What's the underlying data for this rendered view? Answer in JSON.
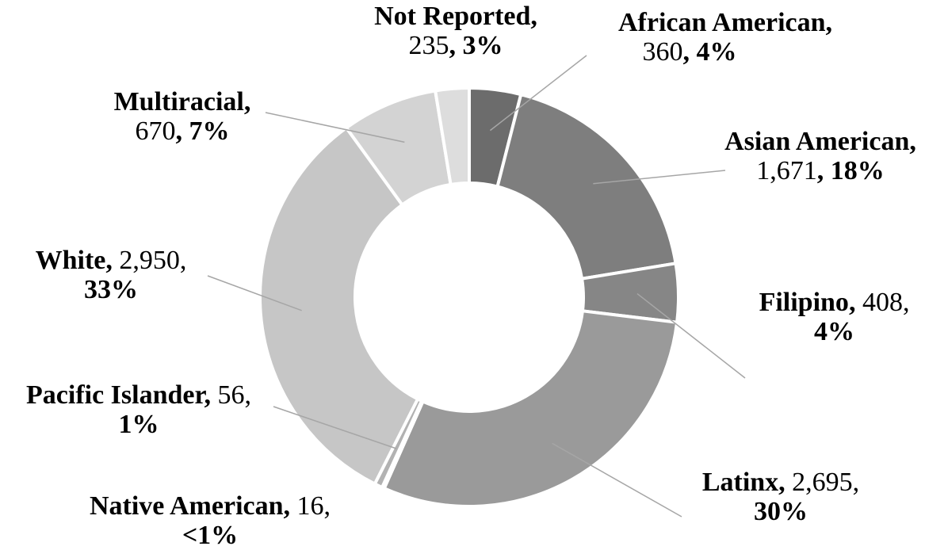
{
  "chart_data": {
    "type": "pie",
    "style": "donut",
    "legend": "none",
    "slices": [
      {
        "category": "African American",
        "count_text": "360",
        "percent_text": "4%",
        "value": 360,
        "color": "#6c6c6c"
      },
      {
        "category": "Asian American",
        "count_text": "1,671",
        "percent_text": "18%",
        "value": 1671,
        "color": "#7e7e7e"
      },
      {
        "category": "Filipino",
        "count_text": "408",
        "percent_text": "4%",
        "value": 408,
        "color": "#868686"
      },
      {
        "category": "Latinx",
        "count_text": "2,695",
        "percent_text": "30%",
        "value": 2695,
        "color": "#9a9a9a"
      },
      {
        "category": "Native American",
        "count_text": "16",
        "percent_text": "<1%",
        "value": 16,
        "color": "#a8a8a8"
      },
      {
        "category": "Pacific Islander",
        "count_text": "56",
        "percent_text": "1%",
        "value": 56,
        "color": "#b2b2b2"
      },
      {
        "category": "White",
        "count_text": "2,950",
        "percent_text": "33%",
        "value": 2950,
        "color": "#c6c6c6"
      },
      {
        "category": "Multiracial",
        "count_text": "670",
        "percent_text": "7%",
        "value": 670,
        "color": "#d3d3d3"
      },
      {
        "category": "Not Reported",
        "count_text": "235",
        "percent_text": "3%",
        "value": 235,
        "color": "#dddddd"
      }
    ]
  }
}
